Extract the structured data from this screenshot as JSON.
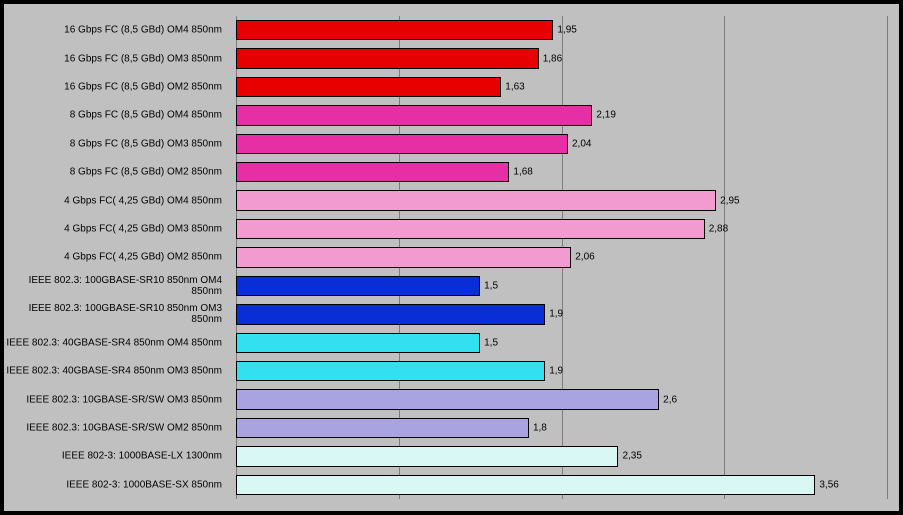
{
  "chart": {
    "type": "bar-horizontal",
    "background_color": "#c0c0c0",
    "border_color": "#000000",
    "border_width": 4,
    "xlim": [
      0,
      4
    ],
    "xtick_step": 1,
    "grid_color": "#000000",
    "grid_opacity": 0.35,
    "label_fontsize": 10,
    "value_fontsize": 10,
    "bar_border_color": "#000000",
    "value_decimal_separator": ",",
    "bars": [
      {
        "label": "16 Gbps FC (8,5 GBd) OM4 850nm",
        "value": 1.95,
        "value_text": "1,95",
        "color": "#e60000"
      },
      {
        "label": "16 Gbps FC (8,5 GBd) OM3 850nm",
        "value": 1.86,
        "value_text": "1,86",
        "color": "#e60000"
      },
      {
        "label": "16 Gbps FC (8,5 GBd) OM2 850nm",
        "value": 1.63,
        "value_text": "1,63",
        "color": "#e60000"
      },
      {
        "label": "8 Gbps FC (8,5 GBd) OM4 850nm",
        "value": 2.19,
        "value_text": "2,19",
        "color": "#e62ea5"
      },
      {
        "label": "8 Gbps FC (8,5 GBd) OM3 850nm",
        "value": 2.04,
        "value_text": "2,04",
        "color": "#e62ea5"
      },
      {
        "label": "8 Gbps FC (8,5 GBd) OM2 850nm",
        "value": 1.68,
        "value_text": "1,68",
        "color": "#e62ea5"
      },
      {
        "label": "4 Gbps FC( 4,25 GBd) OM4 850nm",
        "value": 2.95,
        "value_text": "2,95",
        "color": "#f29bd0"
      },
      {
        "label": "4 Gbps FC( 4,25 GBd) OM3 850nm",
        "value": 2.88,
        "value_text": "2,88",
        "color": "#f29bd0"
      },
      {
        "label": "4 Gbps FC( 4,25 GBd) OM2 850nm",
        "value": 2.06,
        "value_text": "2,06",
        "color": "#f29bd0"
      },
      {
        "label": "IEEE 802.3: 100GBASE-SR10 850nm OM4 850nm",
        "value": 1.5,
        "value_text": "1,5",
        "color": "#0a2ed6"
      },
      {
        "label": "IEEE 802.3: 100GBASE-SR10 850nm OM3 850nm",
        "value": 1.9,
        "value_text": "1,9",
        "color": "#0a2ed6"
      },
      {
        "label": "IEEE 802.3: 40GBASE-SR4 850nm OM4 850nm",
        "value": 1.5,
        "value_text": "1,5",
        "color": "#33e0f0"
      },
      {
        "label": "IEEE 802.3: 40GBASE-SR4 850nm OM3 850nm",
        "value": 1.9,
        "value_text": "1,9",
        "color": "#33e0f0"
      },
      {
        "label": "IEEE 802.3: 10GBASE-SR/SW OM3 850nm",
        "value": 2.6,
        "value_text": "2,6",
        "color": "#a9a4e0"
      },
      {
        "label": "IEEE 802.3: 10GBASE-SR/SW OM2 850nm",
        "value": 1.8,
        "value_text": "1,8",
        "color": "#a9a4e0"
      },
      {
        "label": "IEEE 802-3: 1000BASE-LX 1300nm",
        "value": 2.35,
        "value_text": "2,35",
        "color": "#d8f7f5"
      },
      {
        "label": "IEEE 802-3: 1000BASE-SX 850nm",
        "value": 3.56,
        "value_text": "3,56",
        "color": "#d8f7f5"
      }
    ]
  }
}
